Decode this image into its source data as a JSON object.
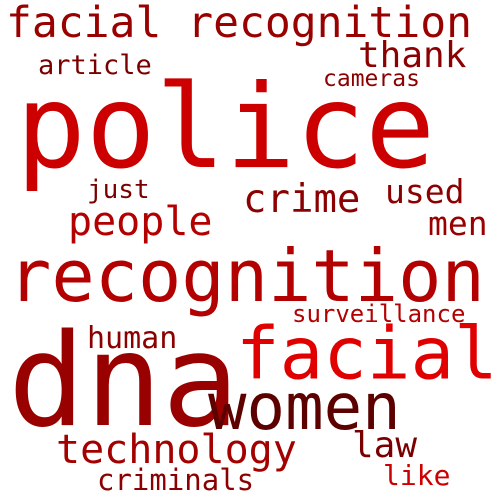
{
  "words": [
    {
      "text": "facial recognition",
      "color": "#990000"
    },
    {
      "text": "thank",
      "color": "#8b0000"
    },
    {
      "text": "article",
      "color": "#7a0000"
    },
    {
      "text": "cameras",
      "color": "#8b0000"
    },
    {
      "text": "police",
      "color": "#cc0000"
    },
    {
      "text": "just",
      "color": "#7a0000"
    },
    {
      "text": "used",
      "color": "#8b0000"
    },
    {
      "text": "crime",
      "color": "#8b0000"
    },
    {
      "text": "people",
      "color": "#b30000"
    },
    {
      "text": "men",
      "color": "#990000"
    },
    {
      "text": "recognition",
      "color": "#b30000"
    },
    {
      "text": "surveillance",
      "color": "#b30000"
    },
    {
      "text": "human",
      "color": "#8b0000"
    },
    {
      "text": "facial",
      "color": "#e00000"
    },
    {
      "text": "dna",
      "color": "#990000"
    },
    {
      "text": "women",
      "color": "#5c0000"
    },
    {
      "text": "technology",
      "color": "#a30000"
    },
    {
      "text": "law",
      "color": "#7a0000"
    },
    {
      "text": "criminals",
      "color": "#8b0000"
    },
    {
      "text": "like",
      "color": "#cc0000"
    }
  ]
}
